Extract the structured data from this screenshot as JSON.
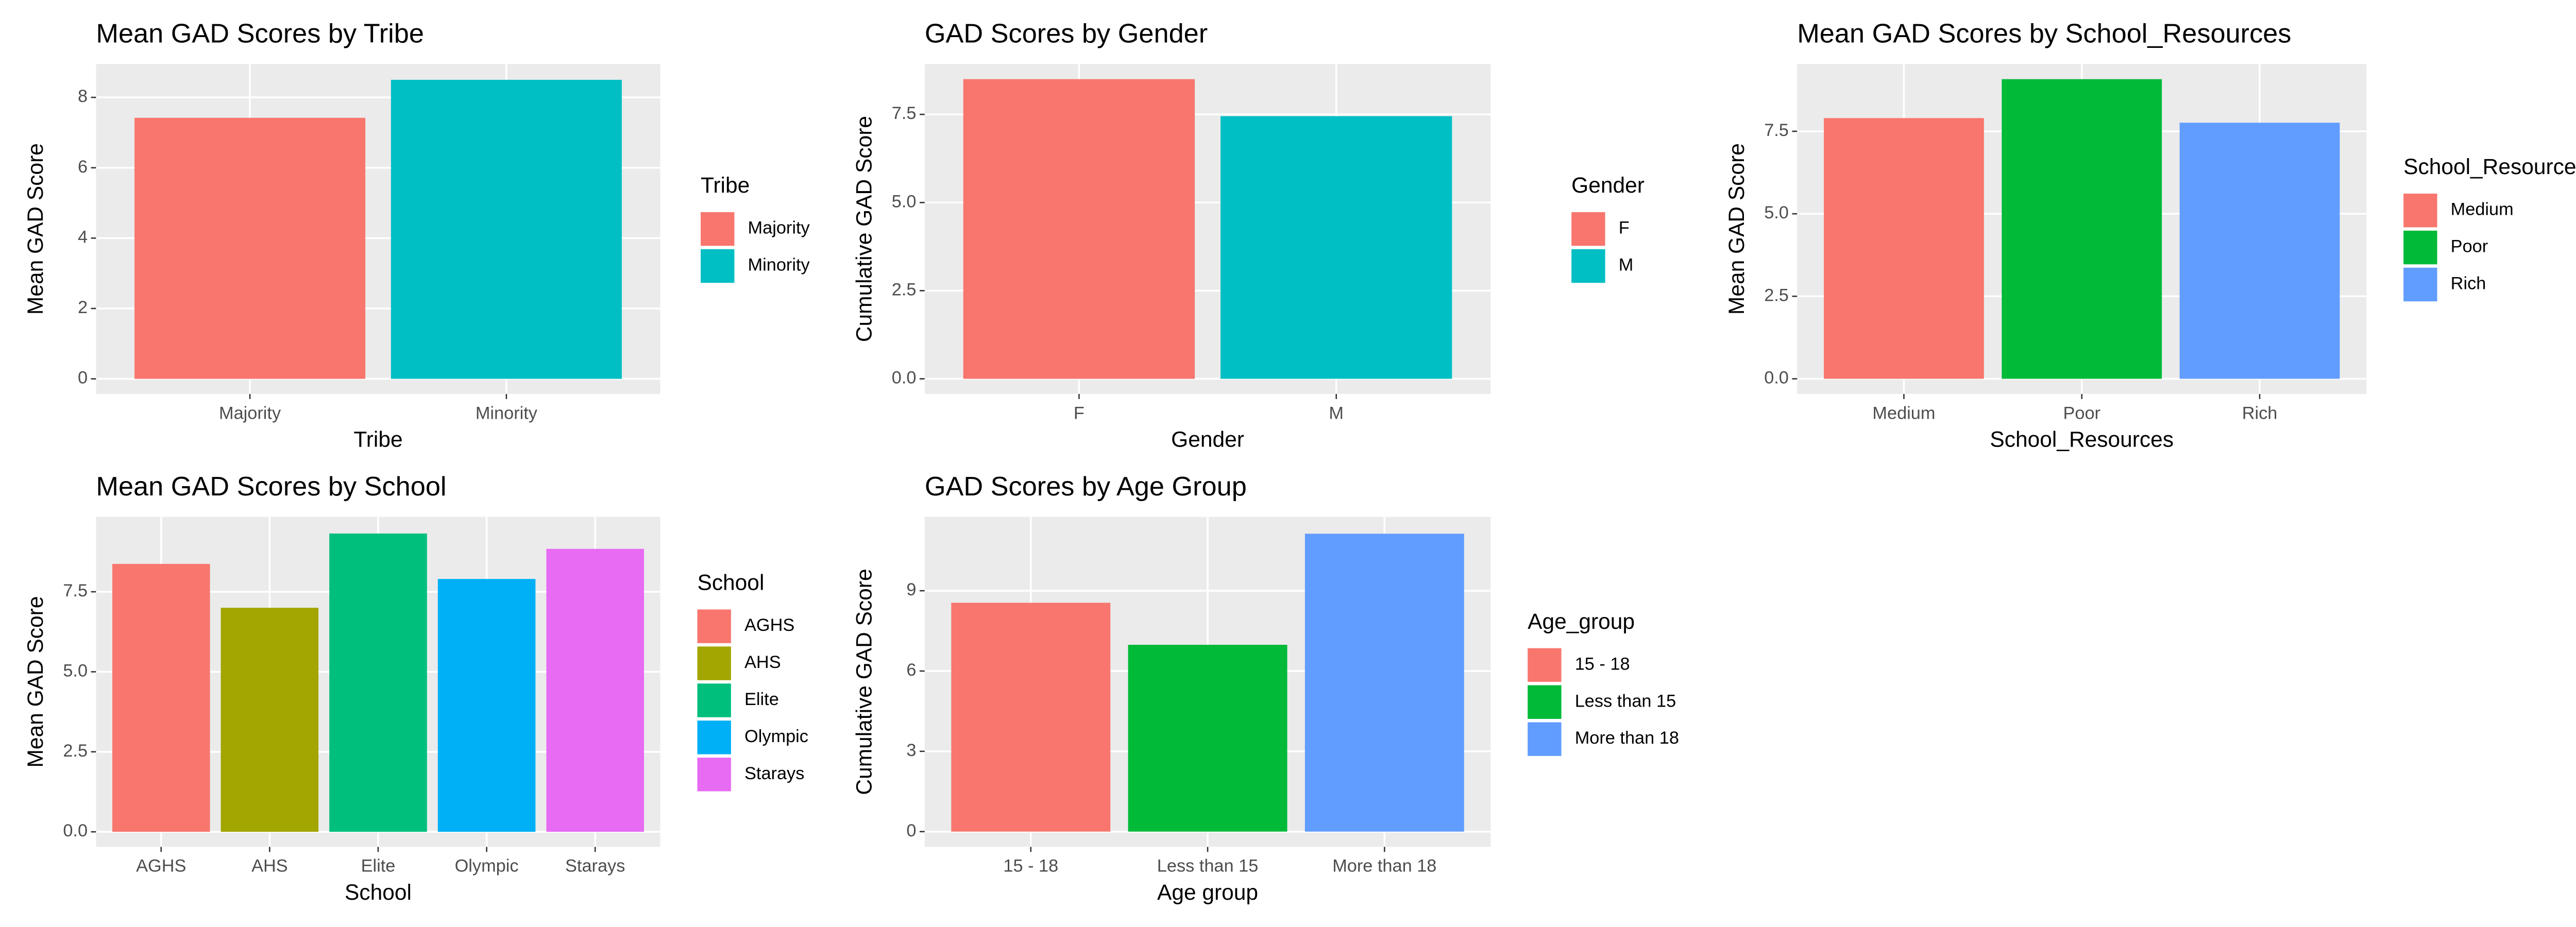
{
  "chart_data": [
    {
      "type": "bar",
      "title": "Mean GAD Scores by Tribe",
      "xlabel": "Tribe",
      "ylabel": "Mean GAD Score",
      "legend_title": "Tribe",
      "categories": [
        "Majority",
        "Minority"
      ],
      "values": [
        7.42,
        8.5
      ],
      "colors": [
        "#F8766D",
        "#00BFC4"
      ],
      "ylim": [
        -0.43,
        8.95
      ],
      "yticks": [
        0,
        2,
        4,
        6,
        8
      ],
      "grid": true
    },
    {
      "type": "bar",
      "title": "GAD Scores by Gender",
      "xlabel": "Gender",
      "ylabel": "Cumulative GAD Score",
      "legend_title": "Gender",
      "categories": [
        "F",
        "M"
      ],
      "values": [
        8.5,
        7.45
      ],
      "colors": [
        "#F8766D",
        "#00BFC4"
      ],
      "ylim": [
        -0.43,
        8.93
      ],
      "yticks": [
        {
          "value": 0,
          "label": "0.0"
        },
        2.5,
        {
          "value": 5,
          "label": "5.0"
        },
        7.5
      ],
      "grid": true
    },
    {
      "type": "bar",
      "title": "Mean GAD Scores by School_Resources",
      "xlabel": "School_Resources",
      "ylabel": "Mean GAD Score",
      "legend_title": "School_Resources",
      "categories": [
        "Medium",
        "Poor",
        "Rich"
      ],
      "values": [
        7.9,
        9.08,
        7.76
      ],
      "colors": [
        "#F8766D",
        "#00BA38",
        "#619CFF"
      ],
      "ylim": [
        -0.46,
        9.54
      ],
      "yticks": [
        {
          "value": 0,
          "label": "0.0"
        },
        2.5,
        {
          "value": 5,
          "label": "5.0"
        },
        7.5
      ],
      "grid": true
    },
    {
      "type": "bar",
      "title": "Mean GAD Scores by School",
      "xlabel": "School",
      "ylabel": "Mean GAD Score",
      "legend_title": "School",
      "categories": [
        "AGHS",
        "AHS",
        "Elite",
        "Olympic",
        "Starays"
      ],
      "values": [
        8.37,
        7.0,
        9.32,
        7.9,
        8.84
      ],
      "colors": [
        "#F8766D",
        "#A3A500",
        "#00BF7D",
        "#00B0F6",
        "#E76BF3"
      ],
      "ylim": [
        -0.47,
        9.84
      ],
      "yticks": [
        {
          "value": 0,
          "label": "0.0"
        },
        2.5,
        {
          "value": 5,
          "label": "5.0"
        },
        7.5
      ],
      "grid": true
    },
    {
      "type": "bar",
      "title": "GAD Scores by Age Group",
      "xlabel": "Age group",
      "ylabel": "Cumulative GAD Score",
      "legend_title": "Age_group",
      "categories": [
        "15 - 18",
        "Less than 15",
        "More than 18"
      ],
      "values": [
        8.55,
        6.98,
        11.13
      ],
      "colors": [
        "#F8766D",
        "#00BA38",
        "#619CFF"
      ],
      "ylim": [
        -0.57,
        11.76
      ],
      "yticks": [
        0,
        3,
        6,
        9
      ],
      "grid": true
    }
  ]
}
